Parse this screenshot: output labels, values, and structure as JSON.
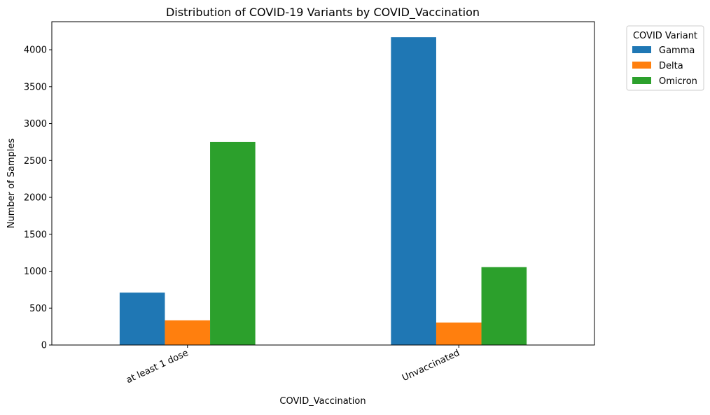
{
  "chart_data": {
    "type": "bar",
    "title": "Distribution of COVID-19 Variants by COVID_Vaccination",
    "xlabel": "COVID_Vaccination",
    "ylabel": "Number of Samples",
    "categories": [
      "at least 1 dose",
      "Unvaccinated"
    ],
    "series": [
      {
        "name": "Gamma",
        "color": "#1f77b4",
        "values": [
          710,
          4170
        ]
      },
      {
        "name": "Delta",
        "color": "#ff7f0e",
        "values": [
          335,
          305
        ]
      },
      {
        "name": "Omicron",
        "color": "#2ca02c",
        "values": [
          2750,
          1055
        ]
      }
    ],
    "ylim": [
      0,
      4380
    ],
    "yticks": [
      0,
      500,
      1000,
      1500,
      2000,
      2500,
      3000,
      3500,
      4000
    ],
    "grid": false,
    "legend": {
      "title": "COVID Variant",
      "placement": "outside-top-right"
    }
  }
}
